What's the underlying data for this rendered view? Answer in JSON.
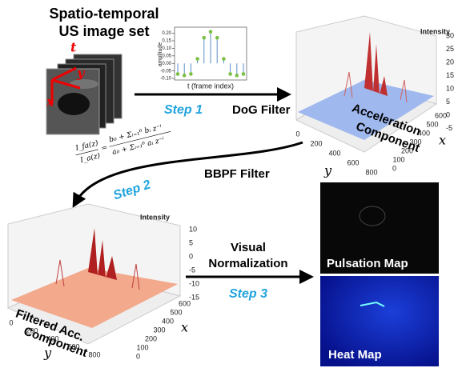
{
  "input": {
    "title_line1": "Spatio-temporal",
    "title_line2": "US image set",
    "axis_t": "t",
    "axis_y": "y",
    "axis_x": "x"
  },
  "dog_plot": {
    "ylabel": "amplitude",
    "xlabel": "t (frame index)",
    "yticks": [
      {
        "value": 0.2,
        "label": "0.20"
      },
      {
        "value": 0.15,
        "label": "0.15"
      },
      {
        "value": 0.1,
        "label": "0.10"
      },
      {
        "value": 0.05,
        "label": "0.05"
      },
      {
        "value": 0,
        "label": "0.00"
      },
      {
        "value": -0.05,
        "label": "-0.05"
      },
      {
        "value": -0.1,
        "label": "-0.10"
      }
    ],
    "ylim": [
      -0.11,
      0.24
    ],
    "values": [
      -0.07,
      -0.08,
      -0.07,
      0.03,
      0.17,
      0.21,
      0.17,
      0.03,
      -0.07,
      -0.08,
      -0.07
    ]
  },
  "step1": {
    "step": "Step 1",
    "label": "DoG Filter"
  },
  "acc_plot": {
    "title_line1": "Acceleration",
    "title_line2": "Component",
    "zlabel": "Intensity",
    "zticks": [
      30,
      25,
      20,
      15,
      10,
      5,
      0,
      -5
    ],
    "yticks": [
      0,
      200,
      400,
      600,
      800
    ],
    "xticks": [
      600,
      500,
      400,
      300,
      200,
      100,
      0
    ],
    "ylabel": "y",
    "xlabel": "x"
  },
  "step2": {
    "step": "Step 2",
    "label": "BBPF Filter",
    "formula_lhs_num": "I_fa(z)",
    "formula_lhs_den": "I_a(z)",
    "formula_eq": "=",
    "formula_num": "b₀ + Σᵢ₌₁⁶ bᵢ z⁻ⁱ",
    "formula_den": "a₀ + Σᵢ₌₁⁶ aᵢ z⁻ⁱ"
  },
  "filtered_plot": {
    "title_line1": "Filtered Acc.",
    "title_line2": "Component",
    "zlabel": "Intensity",
    "zticks": [
      10,
      5,
      0,
      -5,
      -10,
      -15
    ],
    "yticks": [
      0,
      200,
      400,
      600,
      800
    ],
    "xticks": [
      600,
      500,
      400,
      300,
      200,
      100,
      0
    ],
    "ylabel": "y",
    "xlabel": "x"
  },
  "step3": {
    "label_line1": "Visual",
    "label_line2": "Normalization",
    "step": "Step 3"
  },
  "outputs": {
    "pulsation": "Pulsation Map",
    "heat": "Heat Map"
  }
}
